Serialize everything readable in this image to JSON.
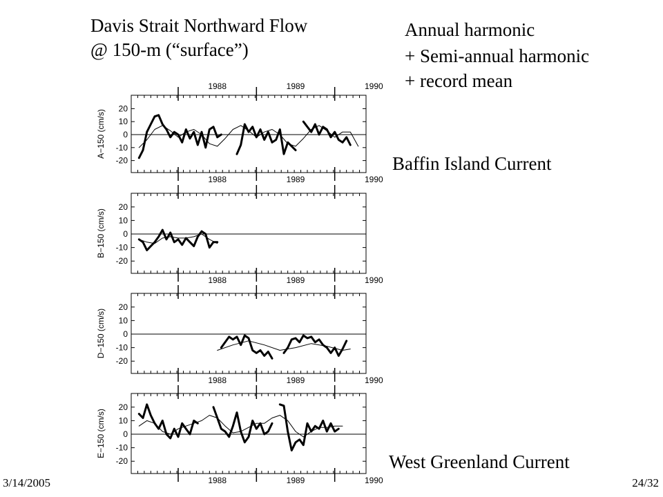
{
  "slide": {
    "title_line1": "Davis Strait Northward Flow",
    "title_line2": "@ 150-m (“surface”)",
    "legend_line1": "Annual harmonic",
    "legend_line2": "+ Semi-annual harmonic",
    "legend_line3": "+ record mean",
    "label_top": "Baffin Island Current",
    "label_bottom": "West Greenland Current",
    "date": "3/14/2005",
    "page": "24/32"
  },
  "colors": {
    "line": "#000000",
    "background": "#ffffff"
  },
  "chart_data": [
    {
      "type": "line",
      "ylabel": "A−150  (cm/s)",
      "year_labels": [
        "1988",
        "1989",
        "1990"
      ],
      "ylim": [
        -25,
        25
      ],
      "yticks": [
        20,
        10,
        0,
        -10,
        -20
      ],
      "zero_line": true,
      "series": [
        {
          "name": "observed",
          "x": [
            1987.5,
            1987.55,
            1987.6,
            1987.65,
            1987.7,
            1987.75,
            1987.8,
            1987.85,
            1987.9,
            1987.95,
            1988.0,
            1988.05,
            1988.1,
            1988.15,
            1988.2,
            1988.25,
            1988.3,
            1988.35,
            1988.4,
            1988.45,
            1988.5,
            1988.55,
            1988.6,
            1988.65,
            1988.75,
            1988.8,
            1988.85,
            1988.9,
            1988.95,
            1989.0,
            1989.05,
            1989.1,
            1989.15,
            1989.2,
            1989.25,
            1989.3,
            1989.35,
            1989.4,
            1989.5,
            1989.55,
            1989.6,
            1989.65,
            1989.7,
            1989.75,
            1989.8,
            1989.85,
            1989.9,
            1989.95,
            1990.0,
            1990.05,
            1990.1,
            1990.15,
            1990.2
          ],
          "y": [
            -18,
            -12,
            2,
            8,
            14,
            15,
            8,
            4,
            -2,
            2,
            0,
            -6,
            4,
            -3,
            2,
            -8,
            2,
            -10,
            4,
            6,
            -2,
            0,
            null,
            null,
            -15,
            -8,
            8,
            2,
            6,
            -2,
            4,
            -4,
            2,
            -6,
            -4,
            4,
            -15,
            -6,
            -12,
            null,
            10,
            6,
            2,
            8,
            0,
            6,
            4,
            -2,
            2,
            -4,
            -6,
            -2,
            -8
          ]
        },
        {
          "name": "fit",
          "x": [
            1987.5,
            1987.6,
            1987.7,
            1987.8,
            1987.9,
            1988.0,
            1988.1,
            1988.2,
            1988.3,
            1988.4,
            1988.5,
            1988.6,
            1988.7,
            1988.8,
            1988.9,
            1989.0,
            1989.1,
            1989.2,
            1989.3,
            1989.4,
            1989.5,
            1989.6,
            1989.7,
            1989.8,
            1989.9,
            1990.0,
            1990.1,
            1990.2,
            1990.3
          ],
          "y": [
            -10,
            -4,
            4,
            7,
            3,
            -2,
            2,
            4,
            0,
            -7,
            -9,
            -3,
            4,
            7,
            3,
            -2,
            2,
            4,
            0,
            -7,
            -9,
            -3,
            4,
            7,
            3,
            -2,
            2,
            2,
            -9
          ]
        }
      ]
    },
    {
      "type": "line",
      "ylabel": "B−150  (cm/s)",
      "year_labels": [
        "1988",
        "1989",
        "1990"
      ],
      "ylim": [
        -25,
        25
      ],
      "yticks": [
        20,
        10,
        0,
        -10,
        -20
      ],
      "zero_line": true,
      "series": [
        {
          "name": "observed",
          "x": [
            1987.5,
            1987.55,
            1987.6,
            1987.65,
            1987.7,
            1987.75,
            1987.8,
            1987.85,
            1987.9,
            1987.95,
            1988.0,
            1988.05,
            1988.1,
            1988.15,
            1988.2,
            1988.25,
            1988.3,
            1988.35,
            1988.4,
            1988.45,
            1988.5
          ],
          "y": [
            -4,
            -6,
            -12,
            -9,
            -6,
            -2,
            3,
            -4,
            1,
            -6,
            -4,
            -8,
            -3,
            -6,
            -9,
            -2,
            2,
            0,
            -10,
            -6,
            -6
          ]
        },
        {
          "name": "fit",
          "x": [
            1987.5,
            1987.6,
            1987.7,
            1987.8,
            1987.9,
            1988.0,
            1988.1,
            1988.2,
            1988.3,
            1988.4,
            1988.5
          ],
          "y": [
            -4,
            -6,
            -7,
            -3,
            -2,
            -3,
            -3,
            -2,
            0,
            -4,
            -7
          ]
        }
      ]
    },
    {
      "type": "line",
      "ylabel": "D−150  (cm/s)",
      "year_labels": [
        "1988",
        "1989",
        "1990"
      ],
      "ylim": [
        -25,
        25
      ],
      "yticks": [
        20,
        10,
        0,
        -10,
        -20
      ],
      "zero_line": true,
      "series": [
        {
          "name": "observed",
          "x": [
            1988.55,
            1988.6,
            1988.65,
            1988.7,
            1988.75,
            1988.8,
            1988.85,
            1988.9,
            1988.95,
            1989.0,
            1989.05,
            1989.1,
            1989.15,
            1989.2,
            1989.25,
            1989.3,
            1989.35,
            1989.4,
            1989.45,
            1989.5,
            1989.55,
            1989.6,
            1989.65,
            1989.7,
            1989.75,
            1989.8,
            1989.85,
            1989.9,
            1989.95,
            1990.0,
            1990.05,
            1990.1,
            1990.15
          ],
          "y": [
            -10,
            -6,
            -2,
            -4,
            -2,
            -8,
            -1,
            -3,
            -12,
            -14,
            -12,
            -16,
            -13,
            -18,
            null,
            null,
            -14,
            -10,
            -4,
            -3,
            -6,
            -1,
            -3,
            -2,
            -6,
            -4,
            -8,
            -10,
            -14,
            -10,
            -16,
            -11,
            -5
          ]
        },
        {
          "name": "fit",
          "x": [
            1988.5,
            1988.7,
            1988.9,
            1989.1,
            1989.3,
            1989.5,
            1989.7,
            1989.9,
            1990.1,
            1990.2
          ],
          "y": [
            -12,
            -8,
            -5,
            -8,
            -12,
            -10,
            -7,
            -9,
            -12,
            -11
          ]
        }
      ]
    },
    {
      "type": "line",
      "ylabel": "E−150  (cm/s)",
      "year_labels": [
        "1988",
        "1989",
        "1990"
      ],
      "ylim": [
        -25,
        25
      ],
      "yticks": [
        20,
        10,
        0,
        -10,
        -20
      ],
      "zero_line": true,
      "series": [
        {
          "name": "observed",
          "x": [
            1987.5,
            1987.55,
            1987.6,
            1987.65,
            1987.7,
            1987.75,
            1987.8,
            1987.85,
            1987.9,
            1987.95,
            1988.0,
            1988.05,
            1988.1,
            1988.15,
            1988.2,
            1988.25,
            1988.3,
            1988.35,
            1988.4,
            1988.45,
            1988.5,
            1988.55,
            1988.6,
            1988.65,
            1988.7,
            1988.75,
            1988.8,
            1988.85,
            1988.9,
            1988.95,
            1989.0,
            1989.05,
            1989.1,
            1989.15,
            1989.2,
            1989.25,
            1989.3,
            1989.35,
            1989.4,
            1989.45,
            1989.5,
            1989.55,
            1989.6,
            1989.65,
            1989.7,
            1989.75,
            1989.8,
            1989.85,
            1989.9,
            1989.95,
            1990.0,
            1990.05
          ],
          "y": [
            15,
            12,
            22,
            14,
            8,
            4,
            10,
            0,
            -3,
            4,
            -2,
            8,
            4,
            0,
            10,
            8,
            null,
            null,
            null,
            20,
            12,
            4,
            2,
            -2,
            6,
            16,
            2,
            -6,
            -2,
            10,
            4,
            8,
            0,
            2,
            8,
            null,
            22,
            21,
            2,
            -12,
            -6,
            -4,
            -8,
            8,
            2,
            6,
            4,
            10,
            2,
            8,
            2,
            4
          ]
        },
        {
          "name": "fit",
          "x": [
            1987.5,
            1987.6,
            1987.7,
            1987.8,
            1987.9,
            1988.0,
            1988.1,
            1988.2,
            1988.3,
            1988.4,
            1988.5,
            1988.6,
            1988.7,
            1988.8,
            1988.9,
            1989.0,
            1989.1,
            1989.2,
            1989.3,
            1989.4,
            1989.5,
            1989.6,
            1989.7,
            1989.8,
            1989.9,
            1990.0,
            1990.1
          ],
          "y": [
            6,
            10,
            8,
            2,
            0,
            4,
            6,
            8,
            10,
            14,
            12,
            6,
            1,
            2,
            5,
            8,
            8,
            12,
            14,
            10,
            2,
            -2,
            2,
            5,
            5,
            6,
            6
          ]
        }
      ]
    }
  ]
}
